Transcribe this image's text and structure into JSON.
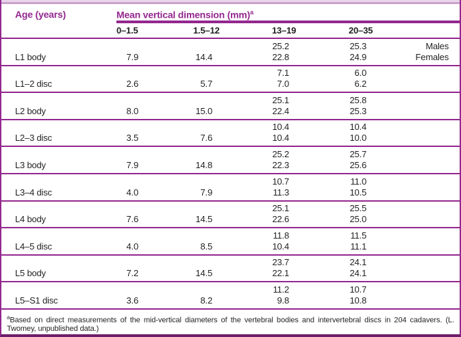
{
  "colors": {
    "purple": "#93278f",
    "purple_dark": "#6e1d6b",
    "band_light": "#e9d4ea",
    "band_mid": "#c9a3cb",
    "text": "#231f20"
  },
  "header": {
    "col1": "Age (years)",
    "group": "Mean vertical dimension (mm)",
    "group_sup": "a"
  },
  "age_columns": [
    "0–1.5",
    "1.5–12",
    "13–19",
    "20–35"
  ],
  "sex_labels": [
    "Males",
    "Females"
  ],
  "rows": [
    {
      "label": "L1 body",
      "c1": "7.9",
      "c2": "14.4",
      "c3_top": "25.2",
      "c3_bot": "22.8",
      "c4_top": "25.3",
      "c4_bot": "24.9",
      "show_sex": true
    },
    {
      "label": "L1–2 disc",
      "c1": "2.6",
      "c2": "5.7",
      "c3_top": "7.1",
      "c3_bot": "7.0",
      "c4_top": "6.0",
      "c4_bot": "6.2",
      "show_sex": false
    },
    {
      "label": "L2 body",
      "c1": "8.0",
      "c2": "15.0",
      "c3_top": "25.1",
      "c3_bot": "22.4",
      "c4_top": "25.8",
      "c4_bot": "25.3",
      "show_sex": false
    },
    {
      "label": "L2–3 disc",
      "c1": "3.5",
      "c2": "7.6",
      "c3_top": "10.4",
      "c3_bot": "10.4",
      "c4_top": "10.4",
      "c4_bot": "10.0",
      "show_sex": false
    },
    {
      "label": "L3 body",
      "c1": "7.9",
      "c2": "14.8",
      "c3_top": "25.2",
      "c3_bot": "22.3",
      "c4_top": "25.7",
      "c4_bot": "25.6",
      "show_sex": false
    },
    {
      "label": "L3–4 disc",
      "c1": "4.0",
      "c2": "7.9",
      "c3_top": "10.7",
      "c3_bot": "11.3",
      "c4_top": "11.0",
      "c4_bot": "10.5",
      "show_sex": false
    },
    {
      "label": "L4 body",
      "c1": "7.6",
      "c2": "14.5",
      "c3_top": "25.1",
      "c3_bot": "22.6",
      "c4_top": "25.5",
      "c4_bot": "25.0",
      "show_sex": false
    },
    {
      "label": "L4–5 disc",
      "c1": "4.0",
      "c2": "8.5",
      "c3_top": "11.8",
      "c3_bot": "10.4",
      "c4_top": "11.5",
      "c4_bot": "11.1",
      "show_sex": false
    },
    {
      "label": "L5 body",
      "c1": "7.2",
      "c2": "14.5",
      "c3_top": "23.7",
      "c3_bot": "22.1",
      "c4_top": "24.1",
      "c4_bot": "24.1",
      "show_sex": false
    },
    {
      "label": "L5–S1 disc",
      "c1": "3.6",
      "c2": "8.2",
      "c3_top": "11.2",
      "c3_bot": "9.8",
      "c4_top": "10.7",
      "c4_bot": "10.8",
      "show_sex": false
    }
  ],
  "footnote": {
    "sup": "a",
    "text": "Based on direct measurements of the mid-vertical diameters of the vertebral bodies and intervertebral discs in 204 cadavers. (L. Twomey, unpublished data.)"
  }
}
